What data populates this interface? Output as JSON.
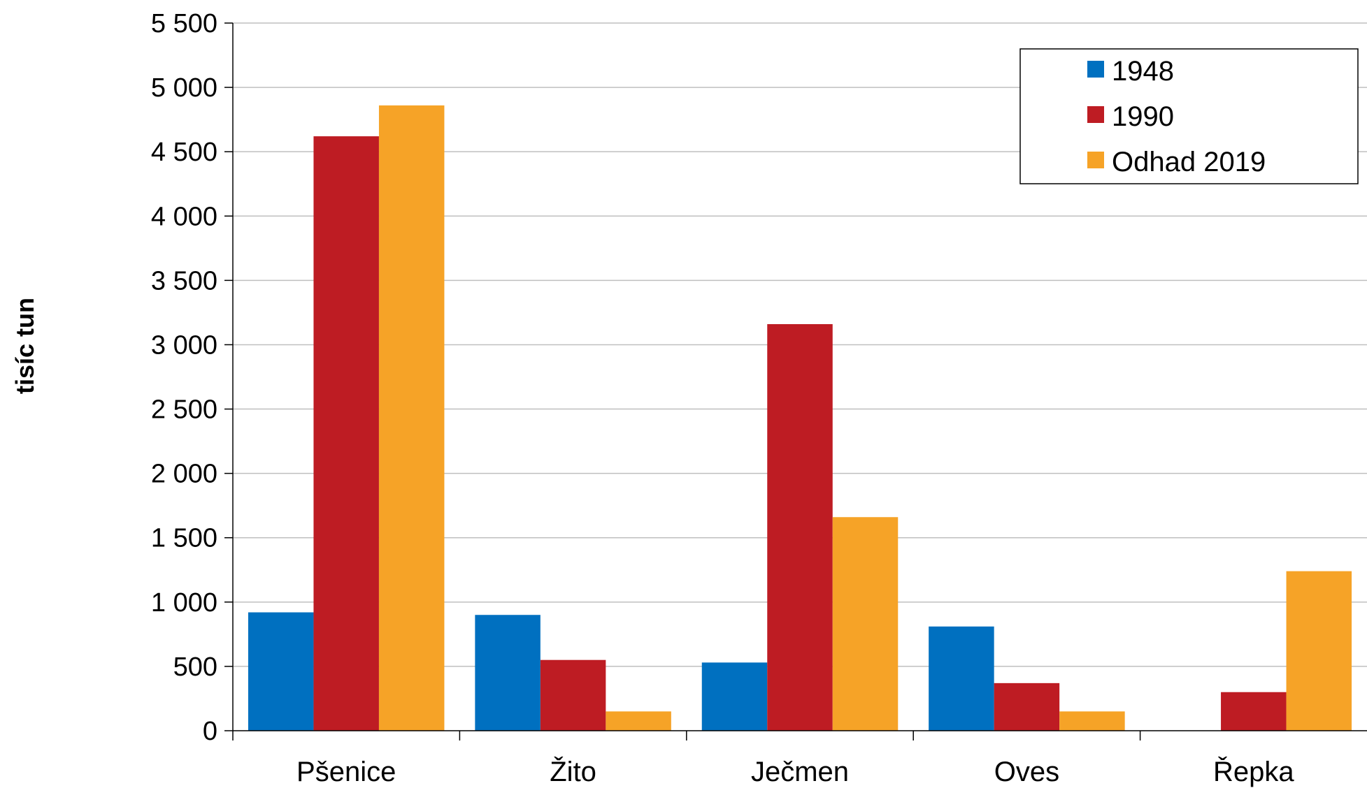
{
  "chart_data": {
    "type": "bar",
    "ylabel": "tisíc tun",
    "xlabel": "",
    "ylim": [
      0,
      5500
    ],
    "yticks": [
      0,
      500,
      1000,
      1500,
      2000,
      2500,
      3000,
      3500,
      4000,
      4500,
      5000,
      5500
    ],
    "ytick_labels": [
      "0",
      "500",
      "1 000",
      "1 500",
      "2 000",
      "2 500",
      "3 000",
      "3 500",
      "4 000",
      "4 500",
      "5 000",
      "5 500"
    ],
    "grid": true,
    "legend_position": "top-right",
    "categories": [
      "Pšenice",
      "Žito",
      "Ječmen",
      "Oves",
      "Řepka"
    ],
    "series": [
      {
        "name": "1948",
        "color": "#0070c0",
        "values": [
          920,
          900,
          530,
          810,
          0
        ]
      },
      {
        "name": "1990",
        "color": "#be1c23",
        "values": [
          4620,
          550,
          3160,
          370,
          300
        ]
      },
      {
        "name": "Odhad 2019",
        "color": "#f6a327",
        "values": [
          4860,
          150,
          1660,
          150,
          1240
        ]
      }
    ]
  }
}
